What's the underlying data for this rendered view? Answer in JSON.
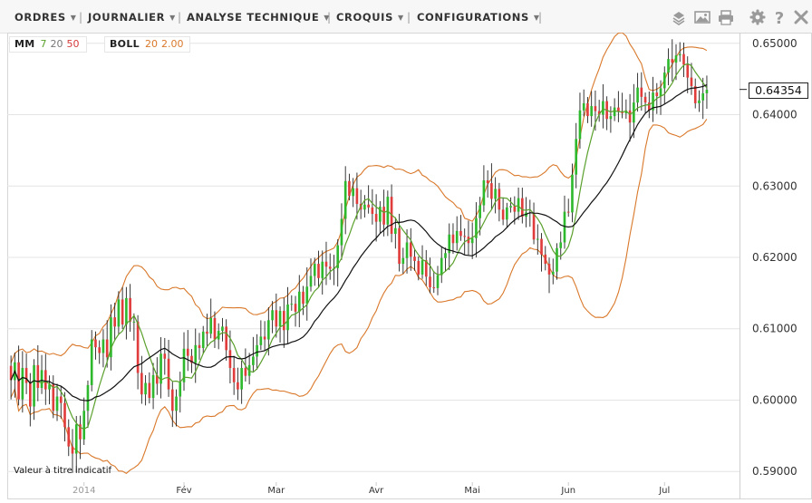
{
  "toolbar": {
    "menus": [
      {
        "label": "ORDRES"
      },
      {
        "label": "JOURNALIER"
      },
      {
        "label": "ANALYSE TECHNIQUE"
      },
      {
        "label": "CROQUIS"
      },
      {
        "label": "CONFIGURATIONS"
      }
    ],
    "icons": [
      "layers-icon",
      "image-icon",
      "print-icon",
      "gear-icon",
      "help-icon",
      "close-icon"
    ]
  },
  "legend": {
    "mm": {
      "label": "MM",
      "p1": "7",
      "p2": "20",
      "p3": "50"
    },
    "boll": {
      "label": "BOLL",
      "p1": "20",
      "p2": "2.00"
    }
  },
  "note": "Valeur à titre indicatif",
  "current_price": "0.64354",
  "colors": {
    "up": "#2db82d",
    "down": "#e03c3c",
    "ma7": "#5aa02c",
    "ma20": "#111111",
    "bollinger": "#d9782a",
    "grid": "#e4e4e4"
  },
  "chart_data": {
    "type": "candlestick",
    "title": "",
    "ylim": [
      0.5885,
      0.6515
    ],
    "y_ticks": [
      "0.59000",
      "0.60000",
      "0.61000",
      "0.62000",
      "0.63000",
      "0.64000",
      "0.65000"
    ],
    "x_tick_labels": [
      "2014",
      "Fév",
      "Mar",
      "Avr",
      "Mai",
      "Jun",
      "Jul"
    ],
    "x_tick_index": [
      19,
      45,
      69,
      95,
      120,
      145,
      170
    ],
    "indicators": [
      "MM 7",
      "MM 20",
      "MM 50",
      "BOLL 20 2.00"
    ],
    "closes": [
      0.6028,
      0.6053,
      0.6001,
      0.6045,
      0.6024,
      0.5991,
      0.6049,
      0.6017,
      0.6042,
      0.6015,
      0.6022,
      0.5985,
      0.6005,
      0.5996,
      0.5962,
      0.5935,
      0.5925,
      0.5966,
      0.5945,
      0.5985,
      0.6021,
      0.6085,
      0.6074,
      0.6066,
      0.6085,
      0.606,
      0.6116,
      0.6103,
      0.6141,
      0.6106,
      0.6143,
      0.611,
      0.611,
      0.6038,
      0.6008,
      0.6024,
      0.6003,
      0.6035,
      0.6023,
      0.6065,
      0.6058,
      0.6015,
      0.5985,
      0.6005,
      0.6025,
      0.6072,
      0.6062,
      0.6052,
      0.6077,
      0.6073,
      0.6096,
      0.6093,
      0.6115,
      0.6085,
      0.6097,
      0.6103,
      0.607,
      0.6045,
      0.6025,
      0.6015,
      0.6045,
      0.6034,
      0.6049,
      0.6061,
      0.6077,
      0.6089,
      0.6085,
      0.6112,
      0.6126,
      0.6103,
      0.6125,
      0.6098,
      0.6134,
      0.6135,
      0.6124,
      0.6152,
      0.6135,
      0.6159,
      0.6174,
      0.6191,
      0.6171,
      0.6194,
      0.6187,
      0.6184,
      0.6185,
      0.6217,
      0.6254,
      0.6307,
      0.6286,
      0.6297,
      0.6275,
      0.6267,
      0.6274,
      0.627,
      0.6261,
      0.625,
      0.6271,
      0.6246,
      0.6285,
      0.6233,
      0.6241,
      0.6191,
      0.6199,
      0.6221,
      0.6201,
      0.6195,
      0.6176,
      0.6196,
      0.6173,
      0.6158,
      0.6157,
      0.6175,
      0.6199,
      0.6206,
      0.6232,
      0.622,
      0.6237,
      0.623,
      0.6229,
      0.622,
      0.6227,
      0.6255,
      0.6273,
      0.6308,
      0.6304,
      0.6282,
      0.6296,
      0.6267,
      0.6253,
      0.627,
      0.6272,
      0.6264,
      0.6283,
      0.6257,
      0.6263,
      0.6262,
      0.6225,
      0.6226,
      0.6204,
      0.6191,
      0.6176,
      0.618,
      0.6213,
      0.6221,
      0.6264,
      0.6263,
      0.6316,
      0.6366,
      0.6406,
      0.6416,
      0.6398,
      0.6412,
      0.6405,
      0.64,
      0.6419,
      0.6394,
      0.6398,
      0.641,
      0.6405,
      0.6402,
      0.6406,
      0.6389,
      0.6417,
      0.6438,
      0.6425,
      0.6417,
      0.6406,
      0.6431,
      0.6426,
      0.6437,
      0.6459,
      0.6478,
      0.6473,
      0.6483,
      0.6485,
      0.647,
      0.6452,
      0.644,
      0.6416,
      0.642,
      0.643,
      0.6435
    ],
    "opens": [
      0.6048,
      0.6028,
      0.6053,
      0.6001,
      0.6045,
      0.6024,
      0.5991,
      0.6049,
      0.6017,
      0.6042,
      0.6015,
      0.6022,
      0.5985,
      0.6005,
      0.5996,
      0.5962,
      0.5935,
      0.5925,
      0.5966,
      0.5945,
      0.5985,
      0.6021,
      0.6085,
      0.6074,
      0.6066,
      0.6085,
      0.606,
      0.6116,
      0.6103,
      0.6141,
      0.6106,
      0.6143,
      0.611,
      0.611,
      0.6038,
      0.6008,
      0.6024,
      0.6003,
      0.6035,
      0.6023,
      0.6065,
      0.6058,
      0.6015,
      0.5985,
      0.6005,
      0.6025,
      0.6072,
      0.6062,
      0.6052,
      0.6077,
      0.6073,
      0.6096,
      0.6093,
      0.6115,
      0.6085,
      0.6097,
      0.6103,
      0.607,
      0.6045,
      0.6025,
      0.6015,
      0.6045,
      0.6034,
      0.6049,
      0.6061,
      0.6077,
      0.6089,
      0.6085,
      0.6112,
      0.6126,
      0.6103,
      0.6125,
      0.6098,
      0.6134,
      0.6135,
      0.6124,
      0.6152,
      0.6135,
      0.6159,
      0.6174,
      0.6191,
      0.6171,
      0.6194,
      0.6187,
      0.6184,
      0.6185,
      0.6217,
      0.6254,
      0.6307,
      0.6286,
      0.6297,
      0.6275,
      0.6267,
      0.6274,
      0.627,
      0.6261,
      0.625,
      0.6271,
      0.6246,
      0.6285,
      0.6233,
      0.6241,
      0.6191,
      0.6199,
      0.6221,
      0.6201,
      0.6195,
      0.6176,
      0.6196,
      0.6173,
      0.6158,
      0.6157,
      0.6175,
      0.6199,
      0.6206,
      0.6232,
      0.622,
      0.6237,
      0.623,
      0.6229,
      0.622,
      0.6227,
      0.6255,
      0.6273,
      0.6308,
      0.6304,
      0.6282,
      0.6296,
      0.6267,
      0.6253,
      0.627,
      0.6272,
      0.6264,
      0.6283,
      0.6257,
      0.6263,
      0.6262,
      0.6225,
      0.6226,
      0.6204,
      0.6191,
      0.6176,
      0.618,
      0.6213,
      0.6221,
      0.6264,
      0.6263,
      0.6316,
      0.6366,
      0.6406,
      0.6416,
      0.6398,
      0.6412,
      0.6405,
      0.64,
      0.6419,
      0.6394,
      0.6398,
      0.641,
      0.6405,
      0.6402,
      0.6406,
      0.6389,
      0.6417,
      0.6438,
      0.6425,
      0.6417,
      0.6406,
      0.6431,
      0.6426,
      0.6437,
      0.6459,
      0.6478,
      0.6473,
      0.6483,
      0.6485,
      0.647,
      0.6452,
      0.644,
      0.6416,
      0.642,
      0.643
    ]
  }
}
